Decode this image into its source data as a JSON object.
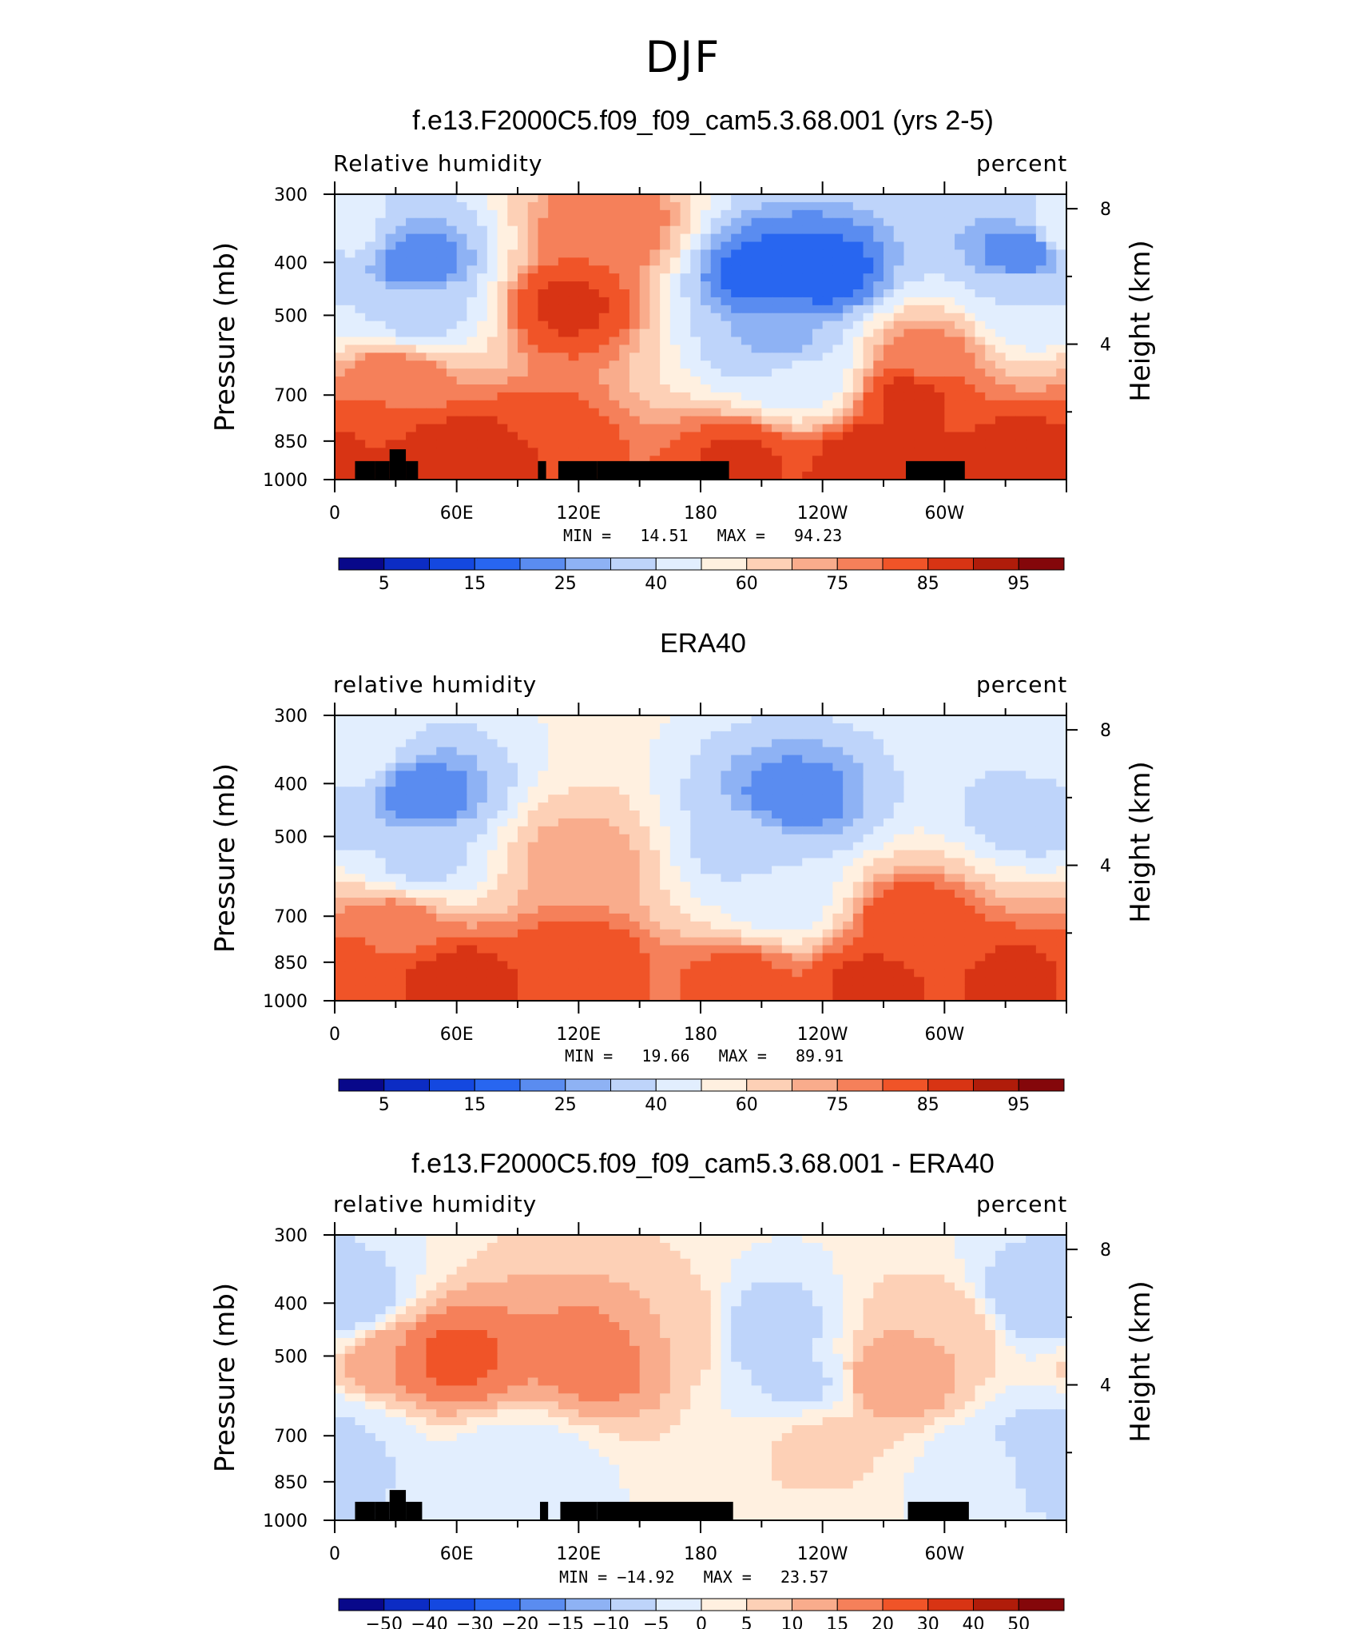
{
  "page": {
    "main_title": "DJF"
  },
  "colors": {
    "abs_levels": [
      "#08088a",
      "#0c2cc4",
      "#1448e0",
      "#2866f0",
      "#5a8cf0",
      "#8eb2f4",
      "#bed4fa",
      "#e2eefe",
      "#fff0e0",
      "#fdd0b6",
      "#f9ac8c",
      "#f5805a",
      "#f05428",
      "#d83414",
      "#b01c0a",
      "#84070a"
    ],
    "diff_levels": [
      "#08088a",
      "#0c2cc4",
      "#1448e0",
      "#2866f0",
      "#5a8cf0",
      "#8eb2f4",
      "#bed4fa",
      "#e2eefe",
      "#fff0e0",
      "#fdd0b6",
      "#f9ac8c",
      "#f5805a",
      "#f05428",
      "#d83414",
      "#b01c0a",
      "#84070a"
    ],
    "land": "#000000"
  },
  "panels": [
    {
      "title": "f.e13.F2000C5.f09_f09_cam5.3.68.001 (yrs 2-5)",
      "variable": "Relative humidity",
      "units": "percent",
      "minmax": "MIN =   14.51   MAX =   94.23",
      "colorbar_labels": [
        "5",
        "15",
        "25",
        "40",
        "60",
        "75",
        "85",
        "95"
      ]
    },
    {
      "title": "ERA40",
      "variable": "relative humidity",
      "units": "percent",
      "minmax": "MIN =   19.66   MAX =   89.91",
      "colorbar_labels": [
        "5",
        "15",
        "25",
        "40",
        "60",
        "75",
        "85",
        "95"
      ]
    },
    {
      "title": "f.e13.F2000C5.f09_f09_cam5.3.68.001 - ERA40",
      "variable": "relative humidity",
      "units": "percent",
      "minmax": "MIN = −14.92   MAX =   23.57",
      "colorbar_labels": [
        "−50",
        "−40",
        "−30",
        "−20",
        "−15",
        "−10",
        "−5",
        "0",
        "5",
        "10",
        "15",
        "20",
        "30",
        "40",
        "50"
      ]
    }
  ],
  "chart_data": [
    {
      "type": "heatmap",
      "title": "f.e13.F2000C5.f09_f09_cam5.3.68.001 (yrs 2-5)",
      "variable": "Relative humidity",
      "units": "percent",
      "xlabel": "",
      "ylabel": "Pressure (mb)",
      "ylabel_right": "Height (km)",
      "x_ticks": [
        "0",
        "60E",
        "120E",
        "180",
        "120W",
        "60W"
      ],
      "x_tick_values": [
        0,
        60,
        120,
        180,
        240,
        300
      ],
      "xlim": [
        0,
        360
      ],
      "y_ticks": [
        "300",
        "400",
        "500",
        "700",
        "850",
        "1000"
      ],
      "y_tick_values": [
        300,
        400,
        500,
        700,
        850,
        1000
      ],
      "ylim": [
        1000,
        300
      ],
      "right_ticks": [
        "8",
        "4"
      ],
      "right_tick_values": [
        8,
        4
      ],
      "levels": [
        5,
        10,
        15,
        20,
        25,
        30,
        40,
        50,
        60,
        70,
        75,
        80,
        85,
        90,
        95
      ],
      "min": 14.51,
      "max": 94.23,
      "land_mask": [
        [
          10,
          20,
          925
        ],
        [
          20,
          27,
          925
        ],
        [
          27,
          35,
          880
        ],
        [
          35,
          41,
          925
        ],
        [
          100,
          104,
          925
        ],
        [
          110,
          129,
          925
        ],
        [
          129,
          194,
          925
        ],
        [
          281,
          310,
          925
        ]
      ],
      "features": [
        {
          "lon": 40,
          "p": 400,
          "val": 22
        },
        {
          "lon": 40,
          "p": 500,
          "val": 37
        },
        {
          "lon": 0,
          "p": 350,
          "val": 45
        },
        {
          "lon": 115,
          "p": 480,
          "val": 86
        },
        {
          "lon": 135,
          "p": 350,
          "val": 80
        },
        {
          "lon": 210,
          "p": 420,
          "val": 18
        },
        {
          "lon": 240,
          "p": 420,
          "val": 17
        },
        {
          "lon": 220,
          "p": 560,
          "val": 28
        },
        {
          "lon": 230,
          "p": 640,
          "val": 42
        },
        {
          "lon": 340,
          "p": 380,
          "val": 22
        },
        {
          "lon": 345,
          "p": 480,
          "val": 40
        },
        {
          "lon": 30,
          "p": 650,
          "val": 80
        },
        {
          "lon": 283,
          "p": 700,
          "val": 87
        },
        {
          "lon": 290,
          "p": 600,
          "val": 78
        },
        {
          "lon": 60,
          "p": 925,
          "val": 90
        },
        {
          "lon": 200,
          "p": 925,
          "val": 86
        },
        {
          "lon": 265,
          "p": 925,
          "val": 90
        },
        {
          "lon": 340,
          "p": 925,
          "val": 90
        },
        {
          "lon": 10,
          "p": 880,
          "val": 85
        },
        {
          "lon": 100,
          "p": 870,
          "val": 85
        }
      ]
    },
    {
      "type": "heatmap",
      "title": "ERA40",
      "variable": "relative humidity",
      "units": "percent",
      "xlabel": "",
      "ylabel": "Pressure (mb)",
      "ylabel_right": "Height (km)",
      "x_ticks": [
        "0",
        "60E",
        "120E",
        "180",
        "120W",
        "60W"
      ],
      "x_tick_values": [
        0,
        60,
        120,
        180,
        240,
        300
      ],
      "xlim": [
        0,
        360
      ],
      "y_ticks": [
        "300",
        "400",
        "500",
        "700",
        "850",
        "1000"
      ],
      "y_tick_values": [
        300,
        400,
        500,
        700,
        850,
        1000
      ],
      "ylim": [
        1000,
        300
      ],
      "right_ticks": [
        "8",
        "4"
      ],
      "right_tick_values": [
        8,
        4
      ],
      "levels": [
        5,
        10,
        15,
        20,
        25,
        30,
        40,
        50,
        60,
        70,
        75,
        80,
        85,
        90,
        95
      ],
      "min": 19.66,
      "max": 89.91,
      "land_mask": [],
      "features": [
        {
          "lon": 42,
          "p": 420,
          "val": 22
        },
        {
          "lon": 42,
          "p": 560,
          "val": 38
        },
        {
          "lon": 5,
          "p": 350,
          "val": 48
        },
        {
          "lon": 120,
          "p": 560,
          "val": 74
        },
        {
          "lon": 225,
          "p": 430,
          "val": 22
        },
        {
          "lon": 205,
          "p": 520,
          "val": 35
        },
        {
          "lon": 220,
          "p": 650,
          "val": 45
        },
        {
          "lon": 345,
          "p": 450,
          "val": 35
        },
        {
          "lon": 30,
          "p": 720,
          "val": 78
        },
        {
          "lon": 283,
          "p": 720,
          "val": 84
        },
        {
          "lon": 60,
          "p": 925,
          "val": 88
        },
        {
          "lon": 200,
          "p": 925,
          "val": 82
        },
        {
          "lon": 265,
          "p": 925,
          "val": 86
        },
        {
          "lon": 340,
          "p": 925,
          "val": 87
        },
        {
          "lon": 8,
          "p": 900,
          "val": 84
        },
        {
          "lon": 120,
          "p": 850,
          "val": 84
        }
      ]
    },
    {
      "type": "heatmap",
      "title": "f.e13.F2000C5.f09_f09_cam5.3.68.001 - ERA40",
      "variable": "relative humidity",
      "units": "percent",
      "xlabel": "",
      "ylabel": "Pressure (mb)",
      "ylabel_right": "Height (km)",
      "x_ticks": [
        "0",
        "60E",
        "120E",
        "180",
        "120W",
        "60W"
      ],
      "x_tick_values": [
        0,
        60,
        120,
        180,
        240,
        300
      ],
      "xlim": [
        0,
        360
      ],
      "y_ticks": [
        "300",
        "400",
        "500",
        "700",
        "850",
        "1000"
      ],
      "y_tick_values": [
        300,
        400,
        500,
        700,
        850,
        1000
      ],
      "ylim": [
        1000,
        300
      ],
      "right_ticks": [
        "8",
        "4"
      ],
      "right_tick_values": [
        8,
        4
      ],
      "levels": [
        -50,
        -40,
        -30,
        -20,
        -15,
        -10,
        -5,
        0,
        5,
        10,
        15,
        20,
        30,
        40,
        50
      ],
      "min": -14.92,
      "max": 23.57,
      "land_mask": [
        [
          10,
          20,
          925
        ],
        [
          20,
          27,
          925
        ],
        [
          27,
          35,
          880
        ],
        [
          35,
          43,
          925
        ],
        [
          101,
          105,
          925
        ],
        [
          111,
          129,
          925
        ],
        [
          129,
          196,
          925
        ],
        [
          282,
          312,
          925
        ]
      ],
      "features": [
        {
          "lon": 55,
          "p": 500,
          "val": 22
        },
        {
          "lon": 30,
          "p": 500,
          "val": 15
        },
        {
          "lon": 130,
          "p": 500,
          "val": 18
        },
        {
          "lon": 170,
          "p": 450,
          "val": 10
        },
        {
          "lon": 210,
          "p": 450,
          "val": -9
        },
        {
          "lon": 230,
          "p": 560,
          "val": -6
        },
        {
          "lon": 275,
          "p": 550,
          "val": 15
        },
        {
          "lon": 300,
          "p": 450,
          "val": 10
        },
        {
          "lon": 8,
          "p": 400,
          "val": -8
        },
        {
          "lon": 345,
          "p": 400,
          "val": -9
        },
        {
          "lon": 350,
          "p": 750,
          "val": -10
        },
        {
          "lon": 5,
          "p": 720,
          "val": -5
        },
        {
          "lon": 90,
          "p": 800,
          "val": -4
        },
        {
          "lon": 240,
          "p": 720,
          "val": 6
        },
        {
          "lon": 320,
          "p": 800,
          "val": -3
        }
      ]
    }
  ]
}
